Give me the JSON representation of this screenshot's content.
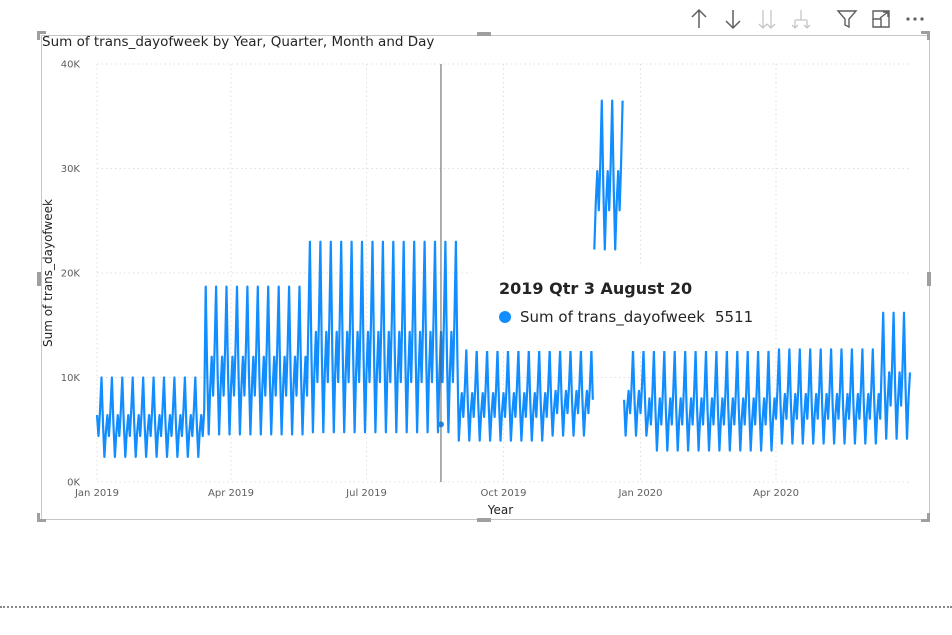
{
  "toolbar": {
    "icons": [
      "arrow-up-icon",
      "arrow-down-icon",
      "double-arrow-down-icon",
      "expand-hierarchy-icon",
      "filter-icon",
      "focus-mode-icon",
      "more-options-icon"
    ]
  },
  "colors": {
    "series": "#118dff",
    "grid": "#e1dfdd",
    "axis_text": "#605e5c",
    "frame": "#c8c6c4"
  },
  "tooltip": {
    "title": "2019 Qtr 3 August 20",
    "series_label": "Sum of trans_dayofweek",
    "value": "5511"
  },
  "chart_data": {
    "type": "line",
    "title": "Sum of trans_dayofweek by Year, Quarter, Month and Day",
    "xlabel": "Year",
    "ylabel": "Sum of trans_dayofweek",
    "x_range": [
      "2019-01-01",
      "2020-06-30"
    ],
    "x_tick_labels": [
      "Jan 2019",
      "Apr 2019",
      "Jul 2019",
      "Oct 2019",
      "Jan 2020",
      "Apr 2020"
    ],
    "y_tick_labels": [
      "0K",
      "10K",
      "20K",
      "30K",
      "40K"
    ],
    "ylim": [
      0,
      40000
    ],
    "grid": true,
    "hover_date": "2019-08-20",
    "weekly_pattern_note_free": true,
    "series": [
      {
        "name": "Sum of trans_dayofweek",
        "segments": [
          {
            "start": "2019-01-01",
            "end": "2019-03-14",
            "low": 2000,
            "mid": 6800,
            "high": 10000
          },
          {
            "start": "2019-03-15",
            "end": "2019-05-22",
            "low": 3800,
            "mid": 8500,
            "high": 18700
          },
          {
            "start": "2019-05-23",
            "end": "2019-08-31",
            "low": 3800,
            "mid": 8500,
            "high": 23000
          },
          {
            "start": "2019-09-01",
            "end": "2019-10-31",
            "low": 3500,
            "mid": 7000,
            "high": 12600
          },
          {
            "start": "2019-11-01",
            "end": "2019-11-30",
            "low": 4000,
            "mid": 11000,
            "high": 12600
          },
          {
            "start": "2019-12-01",
            "end": "2019-12-20",
            "low": 21500,
            "mid": 28000,
            "high": 36500
          },
          {
            "start": "2019-12-21",
            "end": "2020-01-05",
            "low": 4000,
            "mid": 9000,
            "high": 12600
          },
          {
            "start": "2020-01-06",
            "end": "2020-03-31",
            "low": 2500,
            "mid": 5500,
            "high": 12500
          },
          {
            "start": "2020-04-01",
            "end": "2020-06-10",
            "low": 3200,
            "mid": 7000,
            "high": 12700
          },
          {
            "start": "2020-06-11",
            "end": "2020-06-30",
            "low": 3500,
            "mid": 8000,
            "high": 16200
          }
        ]
      }
    ]
  }
}
